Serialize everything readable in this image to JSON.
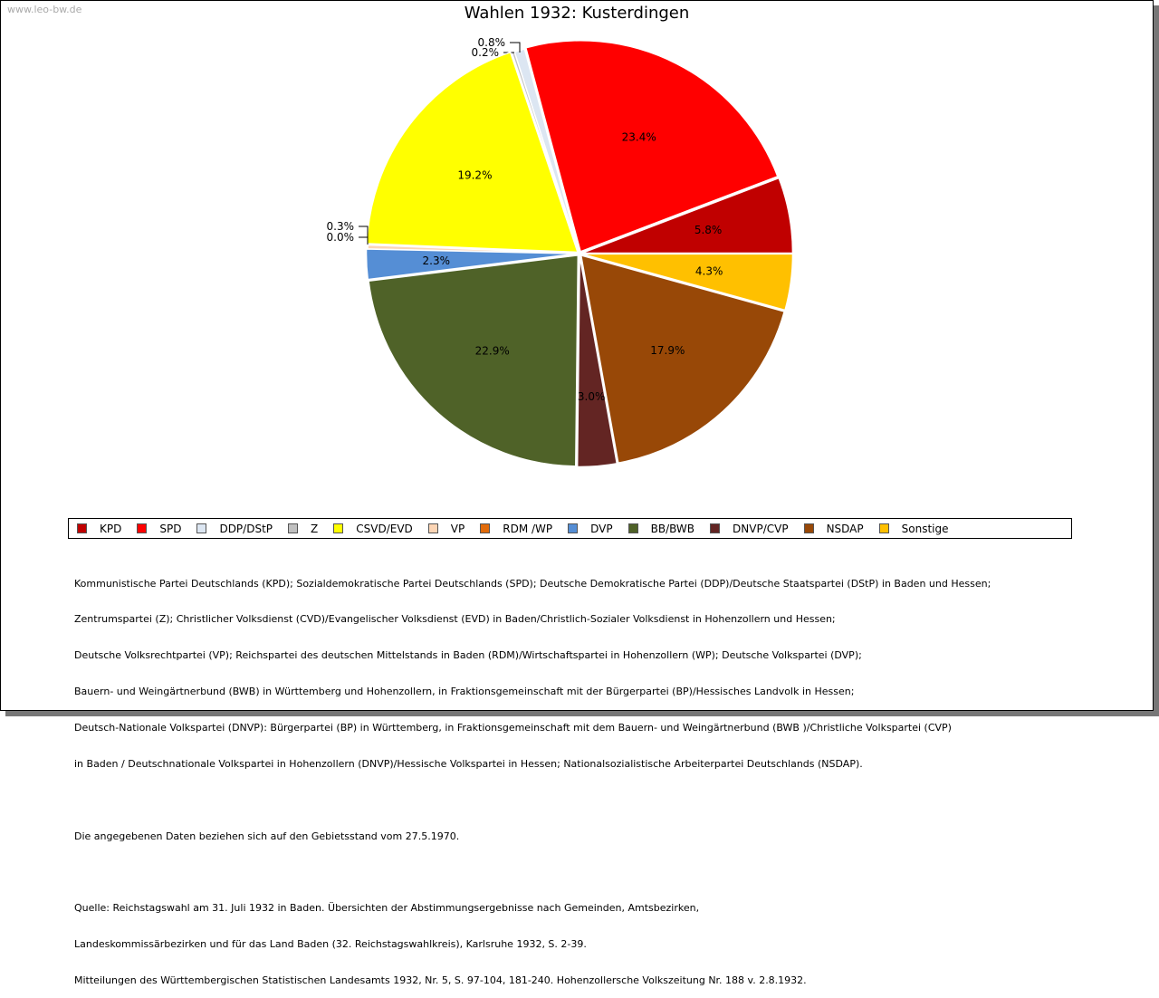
{
  "watermark": "www.leo-bw.de",
  "chart_data": {
    "type": "pie",
    "title": "Wahlen 1932: Kusterdingen",
    "start": "east, counterclockwise",
    "legend_position": "bottom",
    "slices": [
      {
        "name": "KPD",
        "value": 5.8,
        "label": "5.8%",
        "color": "#c00000"
      },
      {
        "name": "SPD",
        "value": 23.4,
        "label": "23.4%",
        "color": "#ff0000"
      },
      {
        "name": "DDP/DStP",
        "value": 0.8,
        "label": "0.8%",
        "color": "#dce6f2"
      },
      {
        "name": "Z",
        "value": 0.2,
        "label": "0.2%",
        "color": "#c0c0c0"
      },
      {
        "name": "CSVD/EVD",
        "value": 19.2,
        "label": "19.2%",
        "color": "#ffff00"
      },
      {
        "name": "VP",
        "value": 0.3,
        "label": "0.3%",
        "color": "#fcd5b5"
      },
      {
        "name": "RDM /WP",
        "value": 0.0,
        "label": "0.0%",
        "color": "#e26b0a"
      },
      {
        "name": "DVP",
        "value": 2.3,
        "label": "2.3%",
        "color": "#558ed5"
      },
      {
        "name": "BB/BWB",
        "value": 22.9,
        "label": "22.9%",
        "color": "#4f6228"
      },
      {
        "name": "DNVP/CVP",
        "value": 3.0,
        "label": "3.0%",
        "color": "#632523"
      },
      {
        "name": "NSDAP",
        "value": 17.9,
        "label": "17.9%",
        "color": "#984807"
      },
      {
        "name": "Sonstige",
        "value": 4.3,
        "label": "4.3%",
        "color": "#ffc000"
      }
    ]
  },
  "notes": {
    "parties": [
      "Kommunistische Partei Deutschlands (KPD); Sozialdemokratische Partei Deutschlands (SPD); Deutsche Demokratische Partei (DDP)/Deutsche Staatspartei (DStP) in Baden und Hessen;",
      "Zentrumspartei (Z); Christlicher Volksdienst (CVD)/Evangelischer Volksdienst (EVD) in Baden/Christlich-Sozialer Volksdienst in Hohenzollern und Hessen;",
      "Deutsche Volksrechtpartei (VP); Reichspartei des deutschen Mittelstands in Baden (RDM)/Wirtschaftspartei in Hohenzollern (WP); Deutsche Volkspartei (DVP);",
      "Bauern- und Weingärtnerbund (BWB) in Württemberg und Hohenzollern, in Fraktionsgemeinschaft mit der Bürgerpartei (BP)/Hessisches Landvolk in Hessen;",
      "Deutsch-Nationale Volkspartei (DNVP): Bürgerpartei (BP) in Württemberg, in Fraktionsgemeinschaft mit dem Bauern- und Weingärtnerbund (BWB )/Christliche Volkspartei (CVP)",
      "in Baden / Deutschnationale Volkspartei in Hohenzollern (DNVP)/Hessische Volkspartei in Hessen; Nationalsozialistische Arbeiterpartei Deutschlands (NSDAP)."
    ],
    "territory": "Die angegebenen Daten beziehen sich auf den Gebietsstand vom 27.5.1970.",
    "source": [
      "Quelle: Reichstagswahl am 31. Juli 1932 in Baden. Übersichten der Abstimmungsergebnisse nach Gemeinden, Amtsbezirken,",
      "Landeskommissärbezirken und für das Land Baden (32. Reichstagswahlkreis), Karlsruhe 1932, S. 2-39.",
      "Mitteilungen des Württembergischen Statistischen Landesamts 1932, Nr. 5, S. 97-104, 181-240. Hohenzollersche Volkszeitung Nr. 188 v. 2.8.1932."
    ]
  }
}
